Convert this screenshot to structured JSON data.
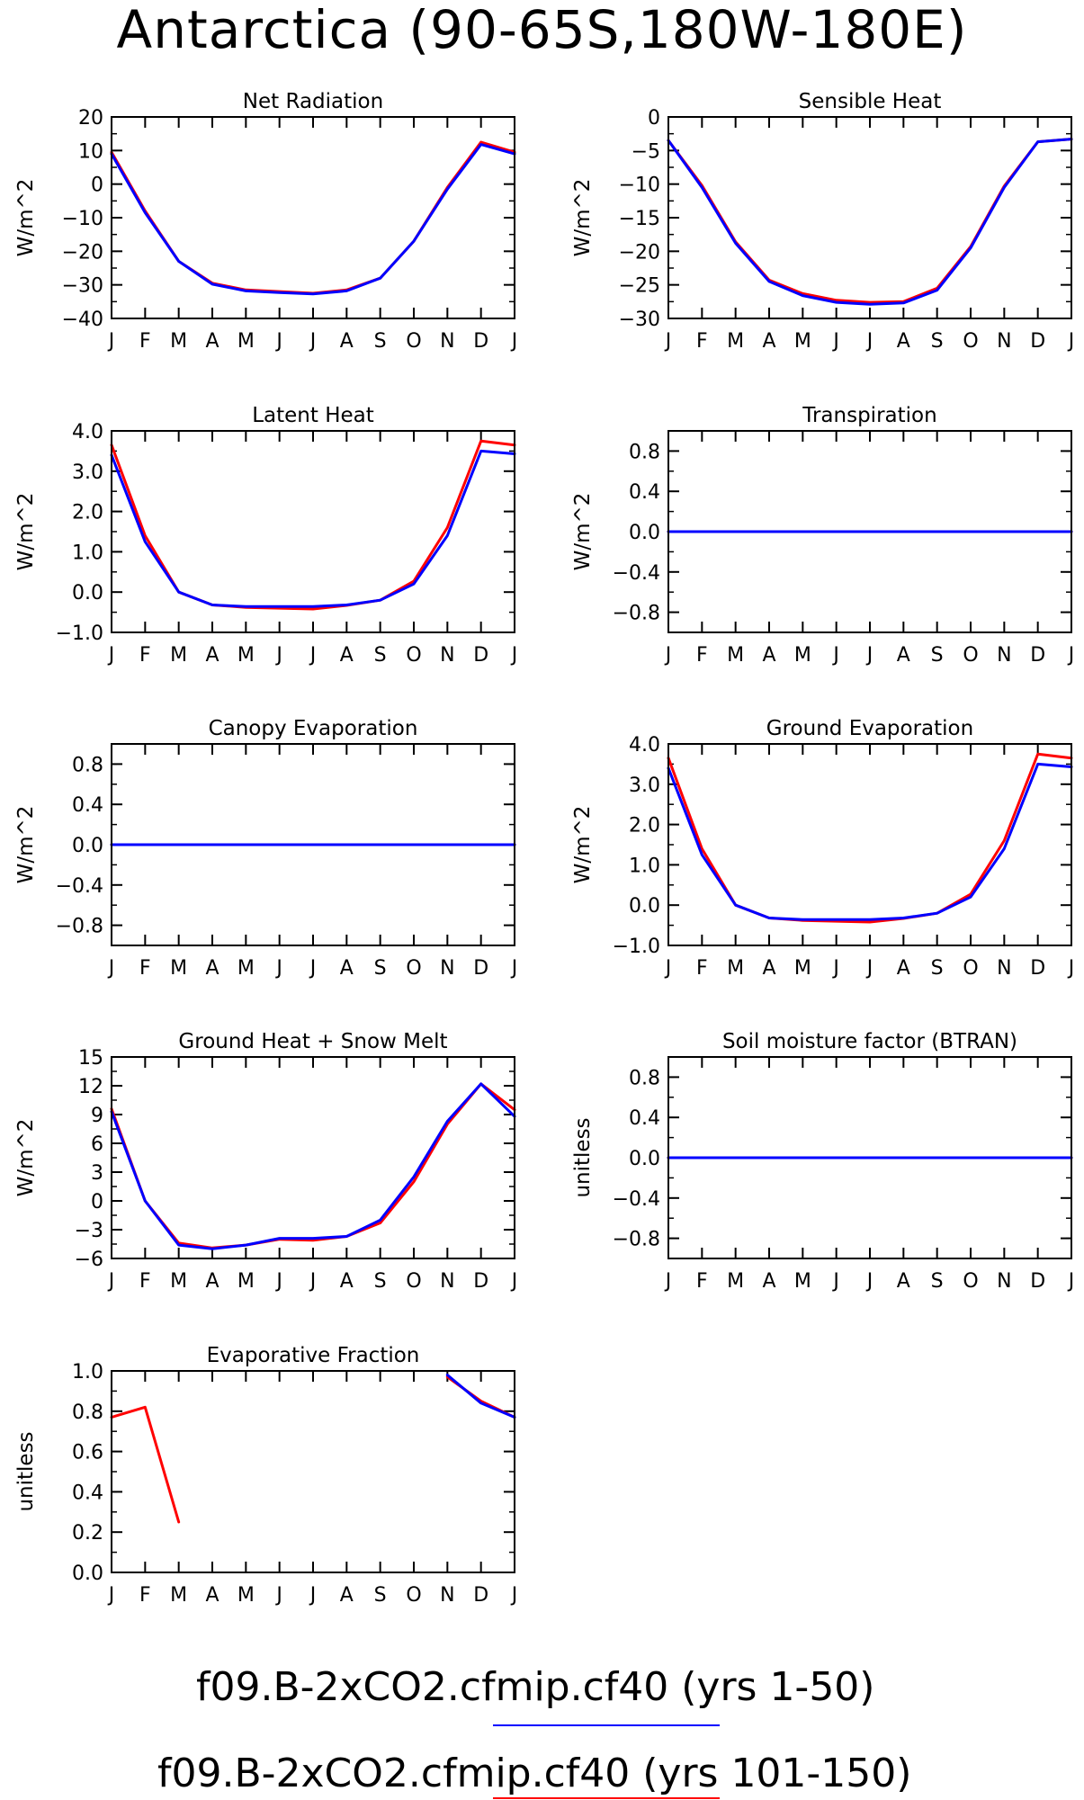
{
  "title": "Antarctica (90-65S,180W-180E)",
  "colors": {
    "series1": "#0000ff",
    "series2": "#ff0000",
    "axes": "#000000"
  },
  "legend": [
    {
      "label": "f09.B-2xCO2.cfmip.cf40 (yrs 1-50)",
      "color": "#0000ff"
    },
    {
      "label": "f09.B-2xCO2.cfmip.cf40 (yrs 101-150)",
      "color": "#ff0000"
    }
  ],
  "chart_data": [
    {
      "type": "line",
      "title": "Net Radiation",
      "ylabel": "W/m^2",
      "x": [
        "J",
        "F",
        "M",
        "A",
        "M",
        "J",
        "J",
        "A",
        "S",
        "O",
        "N",
        "D",
        "J"
      ],
      "ylim": [
        -40,
        20
      ],
      "yticks": [
        20,
        10,
        0,
        -10,
        -20,
        -30,
        -40
      ],
      "series": [
        {
          "color": "#ff0000",
          "values": [
            9.5,
            -8,
            -23,
            -29.5,
            -31.5,
            -32,
            -32.5,
            -31.5,
            -28,
            -17,
            -1,
            12.5,
            9.5
          ]
        },
        {
          "color": "#0000ff",
          "values": [
            9,
            -8.5,
            -23,
            -29.8,
            -31.8,
            -32.3,
            -32.7,
            -31.8,
            -28,
            -17,
            -1.5,
            11.8,
            9
          ]
        }
      ]
    },
    {
      "type": "line",
      "title": "Sensible Heat",
      "ylabel": "W/m^2",
      "x": [
        "J",
        "F",
        "M",
        "A",
        "M",
        "J",
        "J",
        "A",
        "S",
        "O",
        "N",
        "D",
        "J"
      ],
      "ylim": [
        -30,
        0
      ],
      "yticks": [
        0,
        -5,
        -10,
        -15,
        -20,
        -25,
        -30
      ],
      "series": [
        {
          "color": "#ff0000",
          "values": [
            -3.5,
            -10.2,
            -18.6,
            -24.3,
            -26.3,
            -27.3,
            -27.6,
            -27.5,
            -25.5,
            -19.3,
            -10.3,
            -3.7,
            -3.3
          ]
        },
        {
          "color": "#0000ff",
          "values": [
            -3.5,
            -10.5,
            -18.8,
            -24.5,
            -26.6,
            -27.6,
            -27.9,
            -27.7,
            -25.8,
            -19.5,
            -10.5,
            -3.7,
            -3.3
          ]
        }
      ]
    },
    {
      "type": "line",
      "title": "Latent Heat",
      "ylabel": "W/m^2",
      "x": [
        "J",
        "F",
        "M",
        "A",
        "M",
        "J",
        "J",
        "A",
        "S",
        "O",
        "N",
        "D",
        "J"
      ],
      "ylim": [
        -1,
        4
      ],
      "yticks": [
        4.0,
        3.0,
        2.0,
        1.0,
        0.0,
        -1.0
      ],
      "tickfmt": "1",
      "series": [
        {
          "color": "#ff0000",
          "values": [
            3.65,
            1.4,
            0,
            -0.32,
            -0.38,
            -0.4,
            -0.42,
            -0.33,
            -0.2,
            0.27,
            1.6,
            3.75,
            3.65
          ]
        },
        {
          "color": "#0000ff",
          "values": [
            3.4,
            1.25,
            0,
            -0.32,
            -0.36,
            -0.36,
            -0.36,
            -0.32,
            -0.2,
            0.2,
            1.4,
            3.5,
            3.43
          ]
        }
      ]
    },
    {
      "type": "line",
      "title": "Transpiration",
      "ylabel": "W/m^2",
      "x": [
        "J",
        "F",
        "M",
        "A",
        "M",
        "J",
        "J",
        "A",
        "S",
        "O",
        "N",
        "D",
        "J"
      ],
      "ylim": [
        -1,
        1
      ],
      "yticks": [
        0.8,
        0.4,
        0.0,
        -0.4,
        -0.8
      ],
      "tickfmt": "1",
      "series": [
        {
          "color": "#ff0000",
          "values": [
            0,
            0,
            0,
            0,
            0,
            0,
            0,
            0,
            0,
            0,
            0,
            0,
            0
          ]
        },
        {
          "color": "#0000ff",
          "values": [
            0,
            0,
            0,
            0,
            0,
            0,
            0,
            0,
            0,
            0,
            0,
            0,
            0
          ]
        }
      ]
    },
    {
      "type": "line",
      "title": "Canopy Evaporation",
      "ylabel": "W/m^2",
      "x": [
        "J",
        "F",
        "M",
        "A",
        "M",
        "J",
        "J",
        "A",
        "S",
        "O",
        "N",
        "D",
        "J"
      ],
      "ylim": [
        -1,
        1
      ],
      "yticks": [
        0.8,
        0.4,
        0.0,
        -0.4,
        -0.8
      ],
      "tickfmt": "1",
      "series": [
        {
          "color": "#ff0000",
          "values": [
            0,
            0,
            0,
            0,
            0,
            0,
            0,
            0,
            0,
            0,
            0,
            0,
            0
          ]
        },
        {
          "color": "#0000ff",
          "values": [
            0,
            0,
            0,
            0,
            0,
            0,
            0,
            0,
            0,
            0,
            0,
            0,
            0
          ]
        }
      ]
    },
    {
      "type": "line",
      "title": "Ground Evaporation",
      "ylabel": "W/m^2",
      "x": [
        "J",
        "F",
        "M",
        "A",
        "M",
        "J",
        "J",
        "A",
        "S",
        "O",
        "N",
        "D",
        "J"
      ],
      "ylim": [
        -1,
        4
      ],
      "yticks": [
        4.0,
        3.0,
        2.0,
        1.0,
        0.0,
        -1.0
      ],
      "tickfmt": "1",
      "series": [
        {
          "color": "#ff0000",
          "values": [
            3.65,
            1.4,
            0,
            -0.32,
            -0.38,
            -0.4,
            -0.42,
            -0.33,
            -0.2,
            0.27,
            1.6,
            3.75,
            3.65
          ]
        },
        {
          "color": "#0000ff",
          "values": [
            3.4,
            1.25,
            0,
            -0.32,
            -0.36,
            -0.36,
            -0.36,
            -0.32,
            -0.2,
            0.2,
            1.4,
            3.5,
            3.43
          ]
        }
      ]
    },
    {
      "type": "line",
      "title": "Ground Heat + Snow Melt",
      "ylabel": "W/m^2",
      "x": [
        "J",
        "F",
        "M",
        "A",
        "M",
        "J",
        "J",
        "A",
        "S",
        "O",
        "N",
        "D",
        "J"
      ],
      "ylim": [
        -6,
        15
      ],
      "yticks": [
        15,
        12,
        9,
        6,
        3,
        0,
        -3,
        -6
      ],
      "series": [
        {
          "color": "#ff0000",
          "values": [
            9.6,
            0,
            -4.4,
            -4.9,
            -4.6,
            -4,
            -4.1,
            -3.7,
            -2.3,
            2,
            8,
            12.2,
            9.5
          ]
        },
        {
          "color": "#0000ff",
          "values": [
            9.3,
            0,
            -4.6,
            -5,
            -4.6,
            -3.9,
            -3.9,
            -3.7,
            -2,
            2.5,
            8.3,
            12.2,
            8.8
          ]
        }
      ]
    },
    {
      "type": "line",
      "title": "Soil moisture factor (BTRAN)",
      "ylabel": "unitless",
      "x": [
        "J",
        "F",
        "M",
        "A",
        "M",
        "J",
        "J",
        "A",
        "S",
        "O",
        "N",
        "D",
        "J"
      ],
      "ylim": [
        -1,
        1
      ],
      "yticks": [
        0.8,
        0.4,
        0.0,
        -0.4,
        -0.8
      ],
      "tickfmt": "1",
      "series": [
        {
          "color": "#ff0000",
          "values": [
            0,
            0,
            0,
            0,
            0,
            0,
            0,
            0,
            0,
            0,
            0,
            0,
            0
          ]
        },
        {
          "color": "#0000ff",
          "values": [
            0,
            0,
            0,
            0,
            0,
            0,
            0,
            0,
            0,
            0,
            0,
            0,
            0
          ]
        }
      ]
    },
    {
      "type": "line",
      "title": "Evaporative Fraction",
      "ylabel": "unitless",
      "x": [
        "J",
        "F",
        "M",
        "A",
        "M",
        "J",
        "J",
        "A",
        "S",
        "O",
        "N",
        "D",
        "J"
      ],
      "ylim": [
        0,
        1
      ],
      "yticks": [
        1.0,
        0.8,
        0.6,
        0.4,
        0.2,
        0.0
      ],
      "tickfmt": "1",
      "series": [
        {
          "color": "#ff0000",
          "values": [
            0.77,
            0.82,
            0.25,
            null,
            null,
            null,
            null,
            null,
            null,
            null,
            0.97,
            0.85,
            0.77
          ]
        },
        {
          "color": "#0000ff",
          "values": [
            null,
            null,
            null,
            null,
            null,
            null,
            null,
            null,
            null,
            null,
            0.98,
            0.84,
            0.77
          ]
        }
      ]
    }
  ]
}
